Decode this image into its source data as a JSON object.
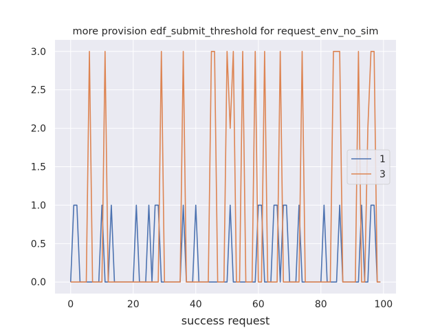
{
  "chart_data": {
    "type": "line",
    "title": "more provision edf_submit_threshold for request_env_no_sim",
    "xlabel": "success request",
    "ylabel": "",
    "xlim": [
      -5,
      104
    ],
    "ylim": [
      -0.15,
      3.15
    ],
    "xticks": [
      0,
      20,
      40,
      60,
      80,
      100
    ],
    "yticks": [
      0.0,
      0.5,
      1.0,
      1.5,
      2.0,
      2.5,
      3.0
    ],
    "xtick_labels": [
      "0",
      "20",
      "40",
      "60",
      "80",
      "100"
    ],
    "ytick_labels": [
      "0.0",
      "0.5",
      "1.0",
      "1.5",
      "2.0",
      "2.5",
      "3.0"
    ],
    "grid": true,
    "background": "#eaeaf2",
    "legend": {
      "position": "right",
      "entries": [
        "1",
        "3"
      ]
    },
    "series": [
      {
        "name": "1",
        "color": "#4c72b0",
        "x": [
          0,
          1,
          2,
          3,
          4,
          5,
          6,
          7,
          8,
          9,
          10,
          11,
          12,
          13,
          14,
          15,
          16,
          17,
          18,
          19,
          20,
          21,
          22,
          23,
          24,
          25,
          26,
          27,
          28,
          29,
          30,
          31,
          32,
          33,
          34,
          35,
          36,
          37,
          38,
          39,
          40,
          41,
          42,
          43,
          44,
          45,
          46,
          47,
          48,
          49,
          50,
          51,
          52,
          53,
          54,
          55,
          56,
          57,
          58,
          59,
          60,
          61,
          62,
          63,
          64,
          65,
          66,
          67,
          68,
          69,
          70,
          71,
          72,
          73,
          74,
          75,
          76,
          77,
          78,
          79,
          80,
          81,
          82,
          83,
          84,
          85,
          86,
          87,
          88,
          89,
          90,
          91,
          92,
          93,
          94,
          95,
          96,
          97,
          98,
          99
        ],
        "y": [
          0,
          1,
          1,
          0,
          0,
          0,
          0,
          0,
          0,
          0,
          1,
          0,
          0,
          1,
          0,
          0,
          0,
          0,
          0,
          0,
          0,
          1,
          0,
          0,
          0,
          1,
          0,
          1,
          1,
          0,
          0,
          0,
          0,
          0,
          0,
          0,
          1,
          0,
          0,
          0,
          1,
          0,
          0,
          0,
          0,
          0,
          0,
          0,
          0,
          0,
          0,
          1,
          0,
          0,
          0,
          0,
          0,
          0,
          0,
          0,
          1,
          1,
          0,
          0,
          0,
          1,
          1,
          0,
          1,
          1,
          0,
          0,
          0,
          1,
          0,
          0,
          0,
          0,
          0,
          0,
          0,
          1,
          0,
          0,
          0,
          0,
          1,
          0,
          0,
          0,
          0,
          0,
          0,
          1,
          0,
          0,
          1,
          1,
          0,
          0
        ]
      },
      {
        "name": "3",
        "color": "#dd8452",
        "x": [
          0,
          1,
          2,
          3,
          4,
          5,
          6,
          7,
          8,
          9,
          10,
          11,
          12,
          13,
          14,
          15,
          16,
          17,
          18,
          19,
          20,
          21,
          22,
          23,
          24,
          25,
          26,
          27,
          28,
          29,
          30,
          31,
          32,
          33,
          34,
          35,
          36,
          37,
          38,
          39,
          40,
          41,
          42,
          43,
          44,
          45,
          46,
          47,
          48,
          49,
          50,
          51,
          52,
          53,
          54,
          55,
          56,
          57,
          58,
          59,
          60,
          61,
          62,
          63,
          64,
          65,
          66,
          67,
          68,
          69,
          70,
          71,
          72,
          73,
          74,
          75,
          76,
          77,
          78,
          79,
          80,
          81,
          82,
          83,
          84,
          85,
          86,
          87,
          88,
          89,
          90,
          91,
          92,
          93,
          94,
          95,
          96,
          97,
          98,
          99
        ],
        "y": [
          0,
          0,
          0,
          0,
          0,
          0,
          3,
          0,
          0,
          0,
          0,
          3,
          0,
          0,
          0,
          0,
          0,
          0,
          0,
          0,
          0,
          0,
          0,
          0,
          0,
          0,
          0,
          0,
          0,
          3,
          0,
          0,
          0,
          0,
          0,
          0,
          3,
          0,
          0,
          0,
          0,
          0,
          0,
          0,
          0,
          3,
          3,
          0,
          0,
          0,
          3,
          2,
          3,
          0,
          0,
          3,
          0,
          0,
          0,
          3,
          0,
          0,
          3,
          0,
          0,
          0,
          0,
          3,
          0,
          0,
          0,
          0,
          0,
          0,
          3,
          0,
          0,
          0,
          0,
          0,
          0,
          0,
          0,
          0,
          3,
          3,
          3,
          0,
          0,
          0,
          0,
          0,
          3,
          0,
          0,
          2,
          3,
          3,
          0,
          0
        ]
      }
    ]
  }
}
